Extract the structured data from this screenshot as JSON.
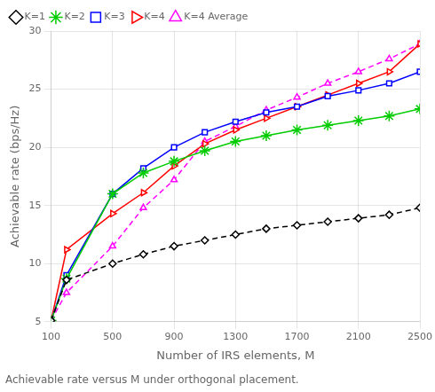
{
  "chart_data": {
    "type": "line",
    "x": [
      100,
      200,
      500,
      700,
      900,
      1100,
      1300,
      1500,
      1700,
      1900,
      2100,
      2300,
      2500
    ],
    "series": [
      {
        "name": "K=1",
        "color": "#000000",
        "marker": "diamond",
        "line_style": "dashed",
        "values": [
          5.1,
          8.6,
          10.0,
          10.8,
          11.5,
          12.0,
          12.5,
          13.0,
          13.3,
          13.6,
          13.9,
          14.2,
          14.8
        ]
      },
      {
        "name": "K=2",
        "color": "#00cc00",
        "marker": "star",
        "line_style": "solid",
        "values": [
          5.1,
          8.7,
          16.0,
          17.8,
          18.8,
          19.7,
          20.5,
          21.0,
          21.5,
          21.9,
          22.3,
          22.7,
          23.3
        ]
      },
      {
        "name": "K=3",
        "color": "#0000ff",
        "marker": "square",
        "line_style": "solid",
        "values": [
          5.1,
          9.0,
          16.0,
          18.2,
          20.0,
          21.3,
          22.2,
          23.0,
          23.5,
          24.4,
          24.9,
          25.5,
          26.5
        ]
      },
      {
        "name": "K=4",
        "color": "#ff0000",
        "marker": "triangle_right",
        "line_style": "solid",
        "values": [
          5.1,
          11.2,
          14.3,
          16.1,
          18.4,
          20.3,
          21.5,
          22.5,
          23.5,
          24.5,
          25.5,
          26.5,
          28.9
        ]
      },
      {
        "name": "K=4 Average",
        "color": "#ff00ff",
        "marker": "triangle",
        "line_style": "dashed",
        "x": [
          100,
          200,
          500,
          700,
          900,
          1100,
          1300,
          1500,
          1700,
          1900,
          2100,
          2300,
          2500
        ],
        "values": [
          5.1,
          7.5,
          11.5,
          14.8,
          17.2,
          20.5,
          21.8,
          23.2,
          24.3,
          25.5,
          26.5,
          27.6,
          28.9
        ]
      }
    ],
    "xlabel": "Number of IRS elements, M",
    "ylabel": "Achievable rate (bps/Hz)",
    "xlim": [
      100,
      2500
    ],
    "ylim": [
      5,
      30
    ],
    "xticks": [
      100,
      500,
      900,
      1300,
      1700,
      2100,
      2500
    ],
    "yticks": [
      5,
      10,
      15,
      20,
      25,
      30
    ],
    "grid": true,
    "legend": "upper left",
    "caption": "Achievable rate versus M under orthogonal placement."
  }
}
